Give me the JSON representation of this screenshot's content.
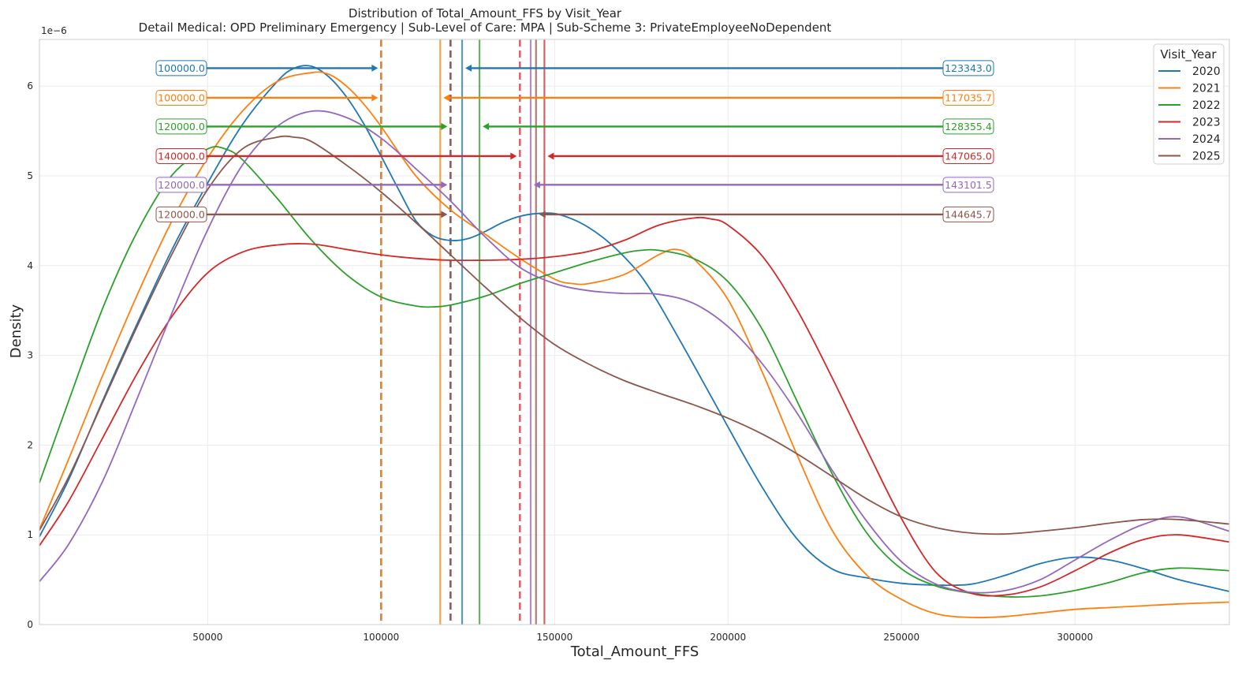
{
  "chart_data": {
    "type": "line",
    "title": "Distribution of Total_Amount_FFS by Visit_Year",
    "subtitle": "Detail Medical: OPD Preliminary Emergency | Sub-Level of Care: MPA | Sub-Scheme 3: PrivateEmployeeNoDependent",
    "xlabel": "Total_Amount_FFS",
    "ylabel": "Density",
    "y_offset_label": "1e−6",
    "xlim": [
      1500,
      344500
    ],
    "ylim": [
      0,
      6.52
    ],
    "xticks": [
      50000,
      100000,
      150000,
      200000,
      250000,
      300000
    ],
    "xtick_labels": [
      "50000",
      "100000",
      "150000",
      "200000",
      "250000",
      "300000"
    ],
    "yticks": [
      0,
      1,
      2,
      3,
      4,
      5,
      6
    ],
    "ytick_labels": [
      "0",
      "1",
      "2",
      "3",
      "4",
      "5",
      "6"
    ],
    "grid": true,
    "legend_title": "Visit_Year",
    "legend_position": "top-right",
    "series": [
      {
        "name": "2020",
        "color": "#1f77b4",
        "median": 100000,
        "mean": 123343.0,
        "median_label": "100000.0",
        "mean_label": "123343.0",
        "arrow_y": 6.2,
        "x": [
          1500,
          10000,
          20000,
          30000,
          40000,
          50000,
          60000,
          70000,
          75000,
          80000,
          85000,
          90000,
          95000,
          100000,
          105000,
          110000,
          115000,
          120000,
          125000,
          130000,
          135000,
          140000,
          145000,
          150000,
          155000,
          160000,
          165000,
          170000,
          175000,
          180000,
          190000,
          200000,
          210000,
          220000,
          230000,
          240000,
          250000,
          260000,
          270000,
          280000,
          290000,
          300000,
          310000,
          320000,
          330000,
          344500
        ],
        "y": [
          0.98,
          1.62,
          2.52,
          3.38,
          4.2,
          4.92,
          5.57,
          6.05,
          6.2,
          6.22,
          6.1,
          5.88,
          5.58,
          5.22,
          4.85,
          4.5,
          4.33,
          4.28,
          4.3,
          4.38,
          4.48,
          4.55,
          4.58,
          4.58,
          4.52,
          4.42,
          4.28,
          4.1,
          3.88,
          3.58,
          2.9,
          2.2,
          1.52,
          0.95,
          0.62,
          0.52,
          0.46,
          0.44,
          0.45,
          0.55,
          0.68,
          0.75,
          0.72,
          0.62,
          0.5,
          0.37
        ]
      },
      {
        "name": "2021",
        "color": "#ff7f0e",
        "median": 100000,
        "mean": 117035.7,
        "median_label": "100000.0",
        "mean_label": "117035.7",
        "arrow_y": 5.87,
        "x": [
          1500,
          10000,
          20000,
          30000,
          40000,
          50000,
          60000,
          70000,
          80000,
          85000,
          90000,
          95000,
          100000,
          110000,
          120000,
          130000,
          140000,
          150000,
          155000,
          160000,
          170000,
          180000,
          185000,
          190000,
          200000,
          210000,
          220000,
          230000,
          240000,
          250000,
          260000,
          270000,
          280000,
          290000,
          300000,
          310000,
          320000,
          330000,
          344500
        ],
        "y": [
          1.06,
          1.85,
          2.8,
          3.7,
          4.52,
          5.2,
          5.72,
          6.05,
          6.15,
          6.13,
          6.0,
          5.8,
          5.55,
          5.0,
          4.62,
          4.35,
          4.08,
          3.85,
          3.8,
          3.8,
          3.9,
          4.12,
          4.18,
          4.08,
          3.62,
          2.8,
          1.88,
          1.05,
          0.55,
          0.28,
          0.12,
          0.08,
          0.09,
          0.13,
          0.17,
          0.19,
          0.21,
          0.23,
          0.25
        ]
      },
      {
        "name": "2022",
        "color": "#2ca02c",
        "median": 120000,
        "mean": 128355.4,
        "median_label": "120000.0",
        "mean_label": "128355.4",
        "arrow_y": 5.55,
        "x": [
          1500,
          10000,
          20000,
          30000,
          40000,
          50000,
          55000,
          60000,
          70000,
          80000,
          90000,
          100000,
          110000,
          115000,
          120000,
          130000,
          140000,
          150000,
          160000,
          170000,
          175000,
          180000,
          190000,
          200000,
          210000,
          220000,
          230000,
          240000,
          250000,
          260000,
          270000,
          280000,
          290000,
          300000,
          310000,
          320000,
          330000,
          344500
        ],
        "y": [
          1.58,
          2.5,
          3.55,
          4.4,
          5.02,
          5.3,
          5.3,
          5.18,
          4.75,
          4.28,
          3.9,
          3.65,
          3.55,
          3.54,
          3.56,
          3.66,
          3.8,
          3.92,
          4.04,
          4.14,
          4.17,
          4.17,
          4.08,
          3.82,
          3.28,
          2.48,
          1.68,
          1.02,
          0.62,
          0.43,
          0.35,
          0.31,
          0.32,
          0.38,
          0.47,
          0.58,
          0.63,
          0.6
        ]
      },
      {
        "name": "2023",
        "color": "#d62728",
        "median": 140000,
        "mean": 147065.0,
        "median_label": "140000.0",
        "mean_label": "147065.0",
        "arrow_y": 5.22,
        "x": [
          1500,
          10000,
          20000,
          30000,
          40000,
          50000,
          60000,
          70000,
          80000,
          90000,
          100000,
          110000,
          120000,
          130000,
          140000,
          150000,
          160000,
          170000,
          180000,
          190000,
          195000,
          200000,
          210000,
          220000,
          230000,
          240000,
          250000,
          260000,
          270000,
          280000,
          290000,
          300000,
          310000,
          320000,
          330000,
          344500
        ],
        "y": [
          0.88,
          1.38,
          2.1,
          2.82,
          3.45,
          3.92,
          4.15,
          4.23,
          4.24,
          4.18,
          4.12,
          4.08,
          4.06,
          4.06,
          4.07,
          4.1,
          4.16,
          4.28,
          4.45,
          4.53,
          4.52,
          4.45,
          4.1,
          3.5,
          2.75,
          1.95,
          1.18,
          0.58,
          0.35,
          0.33,
          0.42,
          0.6,
          0.8,
          0.95,
          1.0,
          0.92
        ]
      },
      {
        "name": "2024",
        "color": "#9467bd",
        "median": 120000,
        "mean": 143101.5,
        "median_label": "120000.0",
        "mean_label": "143101.5",
        "arrow_y": 4.9,
        "x": [
          1500,
          10000,
          20000,
          30000,
          40000,
          50000,
          60000,
          70000,
          80000,
          90000,
          100000,
          110000,
          120000,
          130000,
          140000,
          150000,
          160000,
          170000,
          180000,
          190000,
          200000,
          210000,
          220000,
          230000,
          240000,
          250000,
          260000,
          270000,
          280000,
          290000,
          300000,
          310000,
          320000,
          330000,
          344500
        ],
        "y": [
          0.48,
          0.9,
          1.62,
          2.55,
          3.5,
          4.4,
          5.12,
          5.55,
          5.72,
          5.65,
          5.42,
          5.08,
          4.72,
          4.32,
          3.98,
          3.8,
          3.72,
          3.69,
          3.68,
          3.58,
          3.32,
          2.9,
          2.35,
          1.72,
          1.15,
          0.7,
          0.45,
          0.36,
          0.38,
          0.5,
          0.72,
          0.94,
          1.12,
          1.2,
          1.04
        ]
      },
      {
        "name": "2025",
        "color": "#8c564b",
        "median": 120000,
        "mean": 144645.7,
        "median_label": "120000.0",
        "mean_label": "144645.7",
        "arrow_y": 4.57,
        "x": [
          1500,
          10000,
          20000,
          30000,
          40000,
          50000,
          60000,
          70000,
          75000,
          80000,
          90000,
          100000,
          110000,
          120000,
          130000,
          140000,
          150000,
          160000,
          170000,
          180000,
          190000,
          200000,
          210000,
          220000,
          230000,
          240000,
          250000,
          260000,
          270000,
          280000,
          290000,
          300000,
          310000,
          320000,
          330000,
          344500
        ],
        "y": [
          1.05,
          1.65,
          2.5,
          3.35,
          4.15,
          4.85,
          5.3,
          5.43,
          5.43,
          5.38,
          5.12,
          4.82,
          4.48,
          4.12,
          3.76,
          3.42,
          3.12,
          2.9,
          2.72,
          2.58,
          2.45,
          2.3,
          2.12,
          1.9,
          1.65,
          1.4,
          1.2,
          1.08,
          1.02,
          1.01,
          1.04,
          1.08,
          1.13,
          1.17,
          1.17,
          1.12
        ]
      }
    ]
  }
}
